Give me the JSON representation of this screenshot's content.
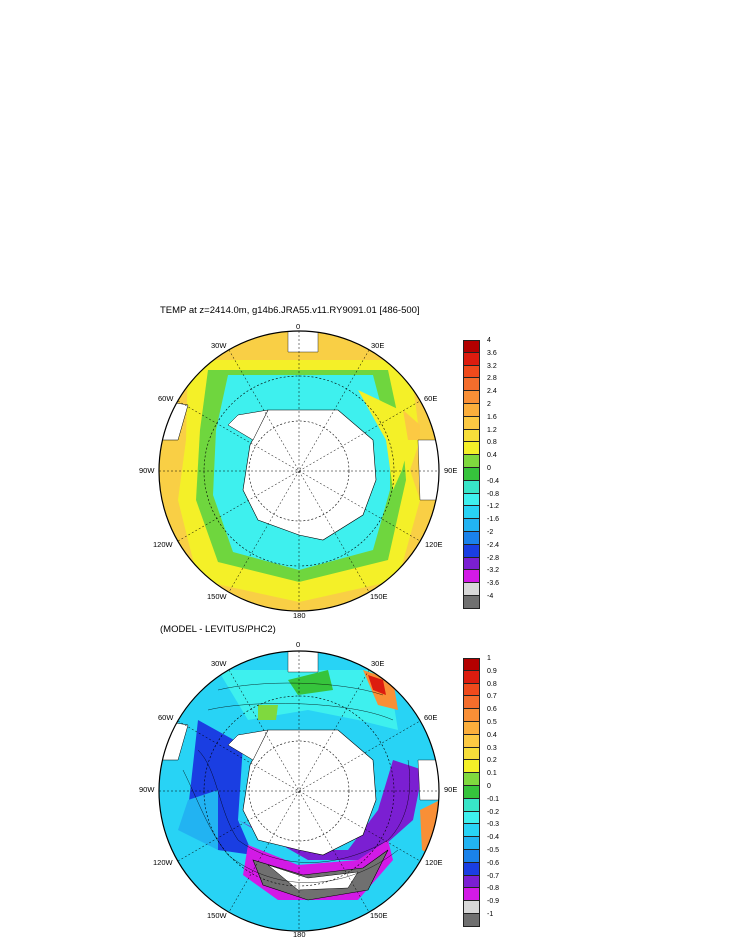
{
  "panel1": {
    "title": "TEMP at z=2414.0m, g14b6.JRA55.v11.RY9091.01 [486-500]",
    "lon_labels": {
      "top": "0",
      "tl": "30W",
      "tr": "30E",
      "ml_up": "60W",
      "mr_up": "60E",
      "left": "90W",
      "right": "90E",
      "ml_dn": "120W",
      "mr_dn": "120E",
      "bl": "150W",
      "br": "150E",
      "bottom": "180"
    },
    "colorbar": {
      "ticks": [
        "4",
        "3.6",
        "3.2",
        "2.8",
        "2.4",
        "2",
        "1.6",
        "1.2",
        "0.8",
        "0.4",
        "0",
        "-0.4",
        "-0.8",
        "-1.2",
        "-1.6",
        "-2",
        "-2.4",
        "-2.8",
        "-3.2",
        "-3.6",
        "-4"
      ],
      "colors": [
        "#b30000",
        "#dc1c0f",
        "#ef4a1c",
        "#f46d2c",
        "#f98f36",
        "#fbae3c",
        "#fcc943",
        "#f7de3a",
        "#f4f028",
        "#7fd93e",
        "#36c43c",
        "#38e5c8",
        "#3ef0ee",
        "#28d3f5",
        "#22b3f2",
        "#1a82ea",
        "#1a3ee2",
        "#7b1fd2",
        "#d21ae6",
        "#d8d8d8",
        "#707070"
      ]
    }
  },
  "panel2": {
    "title": "(MODEL - LEVITUS/PHC2)",
    "lon_labels": {
      "top": "0",
      "tl": "30W",
      "tr": "30E",
      "ml_up": "60W",
      "mr_up": "60E",
      "left": "90W",
      "right": "90E",
      "ml_dn": "120W",
      "mr_dn": "120E",
      "bl": "150W",
      "br": "150E",
      "bottom": "180"
    },
    "colorbar": {
      "ticks": [
        "1",
        "0.9",
        "0.8",
        "0.7",
        "0.6",
        "0.5",
        "0.4",
        "0.3",
        "0.2",
        "0.1",
        "0",
        "-0.1",
        "-0.2",
        "-0.3",
        "-0.4",
        "-0.5",
        "-0.6",
        "-0.7",
        "-0.8",
        "-0.9",
        "-1"
      ],
      "colors": [
        "#b30000",
        "#dc1c0f",
        "#ef4a1c",
        "#f46d2c",
        "#f98f36",
        "#fbae3c",
        "#fcc943",
        "#f7de3a",
        "#f4f028",
        "#7fd93e",
        "#36c43c",
        "#38e5c8",
        "#3ef0ee",
        "#28d3f5",
        "#22b3f2",
        "#1a82ea",
        "#1a3ee2",
        "#7b1fd2",
        "#d21ae6",
        "#d8d8d8",
        "#707070"
      ]
    }
  }
}
